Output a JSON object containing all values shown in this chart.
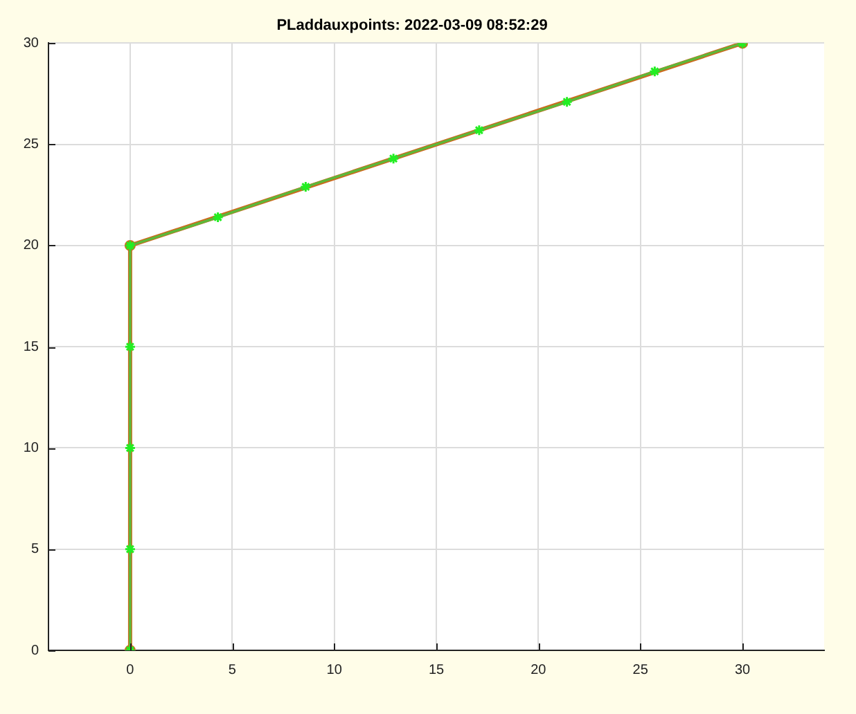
{
  "chart_data": {
    "type": "line",
    "title": "PLaddauxpoints: 2022-03-09 08:52:29",
    "xlim": [
      -4,
      34
    ],
    "xticks": [
      0,
      5,
      10,
      15,
      20,
      25,
      30
    ],
    "ylim": [
      0,
      30
    ],
    "yticks": [
      0,
      5,
      10,
      15,
      20,
      25,
      30
    ],
    "grid": true,
    "line_style": "solid",
    "series": [
      {
        "color": "#cc6a1e",
        "marker": "circle",
        "x": [
          0,
          0,
          30
        ],
        "values": [
          0,
          20,
          30
        ]
      },
      {
        "color": "#5cb83a",
        "marker": "none",
        "x": [
          0,
          0,
          0,
          0,
          0,
          4.3,
          8.6,
          12.9,
          17.1,
          21.4,
          25.7,
          30
        ],
        "values": [
          0,
          5,
          10,
          15,
          20,
          21.4,
          22.9,
          24.3,
          25.7,
          27.1,
          28.6,
          30
        ]
      },
      {
        "type": "scatter",
        "color": "#22ee22",
        "marker": "cross",
        "x": [
          0,
          0,
          0,
          0,
          0,
          4.3,
          8.6,
          12.9,
          17.1,
          21.4,
          25.7,
          30
        ],
        "values": [
          0,
          5,
          10,
          15,
          20,
          21.4,
          22.9,
          24.3,
          25.7,
          27.1,
          28.6,
          30
        ]
      }
    ]
  }
}
